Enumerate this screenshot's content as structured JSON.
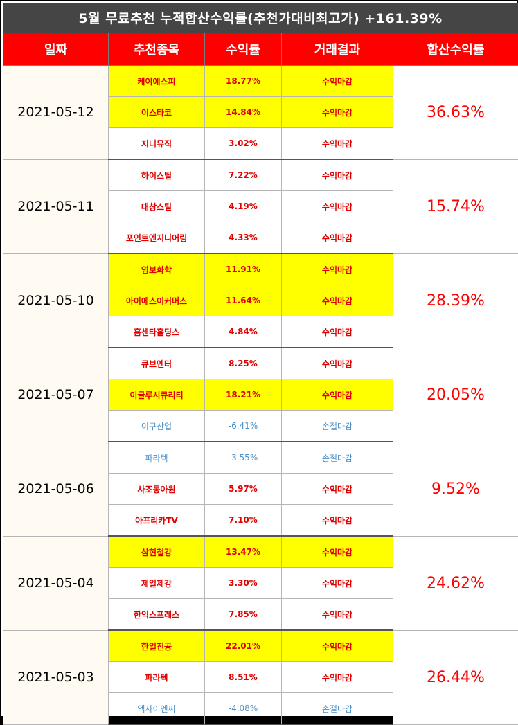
{
  "title": "5월 무료추천 누적합산수익률(추천가대비최고가) +161.39%",
  "headers": [
    "일짜",
    "추천종목",
    "수익률",
    "거래결과",
    "합산수익률"
  ],
  "groups": [
    {
      "date": "2021-05-12",
      "total": "36.63%",
      "rows": [
        {
          "name": "케이에스피",
          "rate": "18.77%",
          "result": "수익마감",
          "highlight": true,
          "loss": false
        },
        {
          "name": "이스타코",
          "rate": "14.84%",
          "result": "수익마감",
          "highlight": true,
          "loss": false
        },
        {
          "name": "지니뮤직",
          "rate": "3.02%",
          "result": "수익마감",
          "highlight": false,
          "loss": false
        }
      ]
    },
    {
      "date": "2021-05-11",
      "total": "15.74%",
      "rows": [
        {
          "name": "하이스틸",
          "rate": "7.22%",
          "result": "수익마감",
          "highlight": false,
          "loss": false
        },
        {
          "name": "대창스틸",
          "rate": "4.19%",
          "result": "수익마감",
          "highlight": false,
          "loss": false
        },
        {
          "name": "포인트엔지니어링",
          "rate": "4.33%",
          "result": "수익마감",
          "highlight": false,
          "loss": false
        }
      ]
    },
    {
      "date": "2021-05-10",
      "total": "28.39%",
      "rows": [
        {
          "name": "영보화학",
          "rate": "11.91%",
          "result": "수익마감",
          "highlight": true,
          "loss": false
        },
        {
          "name": "아이에스이커머스",
          "rate": "11.64%",
          "result": "수익마감",
          "highlight": true,
          "loss": false
        },
        {
          "name": "홈센타홀딩스",
          "rate": "4.84%",
          "result": "수익마감",
          "highlight": false,
          "loss": false
        }
      ]
    },
    {
      "date": "2021-05-07",
      "total": "20.05%",
      "rows": [
        {
          "name": "큐브엔터",
          "rate": "8.25%",
          "result": "수익마감",
          "highlight": false,
          "loss": false
        },
        {
          "name": "이글루시큐리티",
          "rate": "18.21%",
          "result": "수익마감",
          "highlight": true,
          "loss": false
        },
        {
          "name": "이구산업",
          "rate": "-6.41%",
          "result": "손절마감",
          "highlight": false,
          "loss": true
        }
      ]
    },
    {
      "date": "2021-05-06",
      "total": "9.52%",
      "rows": [
        {
          "name": "파라텍",
          "rate": "-3.55%",
          "result": "손절마감",
          "highlight": false,
          "loss": true
        },
        {
          "name": "사조동아원",
          "rate": "5.97%",
          "result": "수익마감",
          "highlight": false,
          "loss": false
        },
        {
          "name": "아프리카TV",
          "rate": "7.10%",
          "result": "수익마감",
          "highlight": false,
          "loss": false
        }
      ]
    },
    {
      "date": "2021-05-04",
      "total": "24.62%",
      "rows": [
        {
          "name": "삼현철강",
          "rate": "13.47%",
          "result": "수익마감",
          "highlight": true,
          "loss": false
        },
        {
          "name": "제일제강",
          "rate": "3.30%",
          "result": "수익마감",
          "highlight": false,
          "loss": false
        },
        {
          "name": "한익스프레스",
          "rate": "7.85%",
          "result": "수익마감",
          "highlight": false,
          "loss": false
        }
      ]
    },
    {
      "date": "2021-05-03",
      "total": "26.44%",
      "rows": [
        {
          "name": "한일진공",
          "rate": "22.01%",
          "result": "수익마감",
          "highlight": true,
          "loss": false
        },
        {
          "name": "파라텍",
          "rate": "8.51%",
          "result": "수익마감",
          "highlight": false,
          "loss": false
        },
        {
          "name": "엑사이엔씨",
          "rate": "-4.08%",
          "result": "손절마감",
          "highlight": false,
          "loss": true
        }
      ]
    }
  ],
  "colors": {
    "title_bg": "#454545",
    "header_bg": "#ff0000",
    "highlight": "#ffff00",
    "profit_text": "#e00000",
    "loss_text": "#4a90c8"
  }
}
